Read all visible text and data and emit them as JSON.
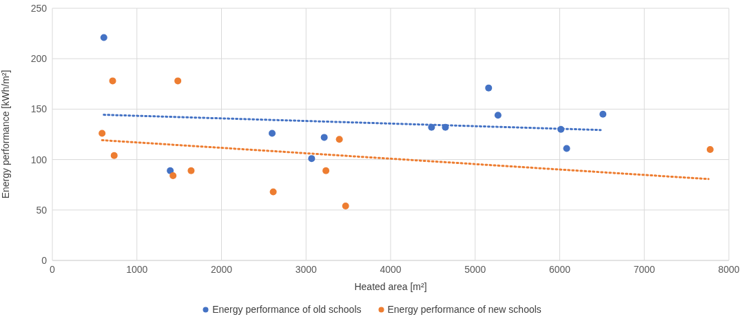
{
  "chart_data": {
    "type": "scatter",
    "xlabel": "Heated area [m²]",
    "ylabel": "Energy performance  [kWh/m²]",
    "xlim": [
      0,
      8000
    ],
    "xticks": [
      0,
      1000,
      2000,
      3000,
      4000,
      5000,
      6000,
      7000,
      8000
    ],
    "ylim": [
      0,
      250
    ],
    "yticks": [
      0,
      50,
      100,
      150,
      200,
      250
    ],
    "grid": true,
    "legend": "bottom",
    "marker": "circle",
    "series": [
      {
        "name": "Energy performance of old schools",
        "color": "#4472c4",
        "x": [
          609,
          1394,
          2599,
          3066,
          3215,
          4484,
          4648,
          5159,
          5270,
          6014,
          6082,
          6511
        ],
        "values": [
          221,
          89,
          126,
          101,
          122,
          132,
          132,
          171,
          144,
          130,
          111,
          145
        ]
      },
      {
        "name": "Energy performance of new schools",
        "color": "#ed7d31",
        "x": [
          588,
          713,
          731,
          1427,
          1484,
          1641,
          2612,
          3235,
          3394,
          3468,
          7779
        ],
        "values": [
          126,
          178,
          104,
          84,
          178,
          89,
          68,
          89,
          120,
          54,
          110
        ]
      },
      {
        "type": "line",
        "color": "#4472c4",
        "line_style": "dotted",
        "marker": "none",
        "x": [
          609,
          6484
        ],
        "values": [
          144.4,
          129.3
        ]
      },
      {
        "type": "line",
        "color": "#ed7d31",
        "line_style": "dotted",
        "marker": "none",
        "x": [
          588,
          7759
        ],
        "values": [
          119.2,
          80.7
        ]
      }
    ]
  }
}
